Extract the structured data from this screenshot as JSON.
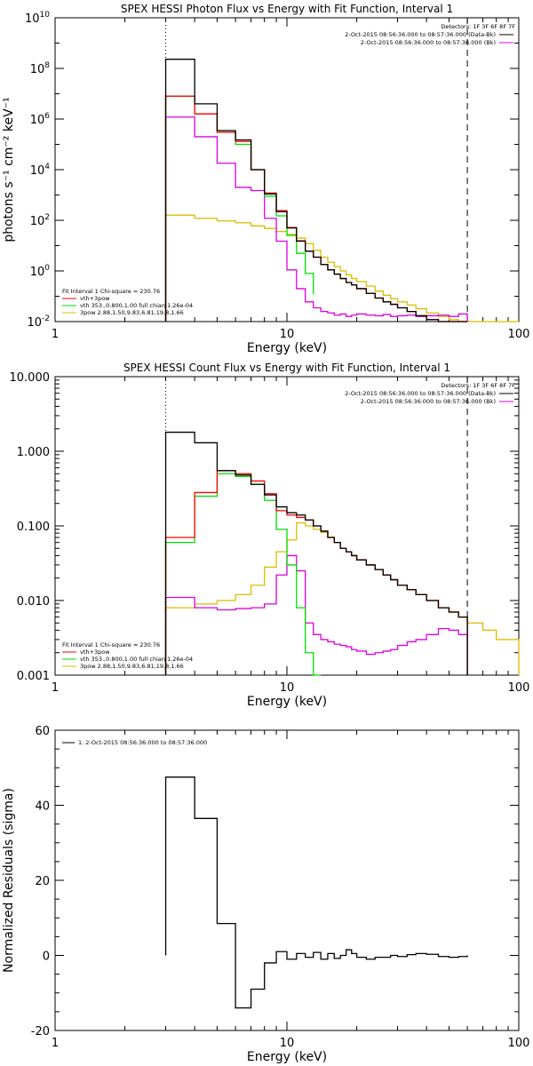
{
  "chart_data": [
    {
      "type": "line",
      "title": "SPEX HESSI Photon Flux vs Energy with Fit Function, Interval 1",
      "xlabel": "Energy (keV)",
      "ylabel": "photons s⁻¹ cm⁻² keV⁻¹",
      "xscale": "log",
      "yscale": "log",
      "xlim": [
        1,
        100
      ],
      "ylim": [
        0.01,
        10000000000.0
      ],
      "xticks": [
        {
          "v": 1,
          "label": "1"
        },
        {
          "v": 10,
          "label": "10"
        },
        {
          "v": 100,
          "label": "100"
        }
      ],
      "yticks": [
        {
          "v": 0.01,
          "base": "10",
          "exp": "-2"
        },
        {
          "v": 1,
          "base": "10",
          "exp": "0"
        },
        {
          "v": 100,
          "base": "10",
          "exp": "2"
        },
        {
          "v": 10000.0,
          "base": "10",
          "exp": "4"
        },
        {
          "v": 1000000.0,
          "base": "10",
          "exp": "6"
        },
        {
          "v": 100000000.0,
          "base": "10",
          "exp": "8"
        },
        {
          "v": 10000000000.0,
          "base": "10",
          "exp": "10"
        }
      ],
      "vlines": [
        {
          "x": 3,
          "style": "dotted"
        },
        {
          "x": 60,
          "style": "dashed"
        }
      ],
      "legend_top": [
        "Detectors: 1F 3F 6F 8F 7F",
        "2-Oct-2015 08:56:36.000 to 08:57:36.000 (Data-Bk)",
        "2-Oct-2015 08:56:36.000 to 08:57:36.000 (Bk)"
      ],
      "legend_bottom_header": "Fit Interval 1   Chi-square = 230.76",
      "legend_bottom": [
        "vth+3pow",
        "vth 353.,0.800,1.00  full chian 1.26e-04",
        "3pow 2.88,1.50,9.83,6.81,19.8,1.66"
      ],
      "series": [
        {
          "name": "data",
          "color": "#000000",
          "edges": [
            3,
            4,
            5,
            6,
            7,
            8,
            9,
            10,
            11,
            12,
            13,
            14,
            15,
            16,
            17,
            18,
            19,
            20,
            22,
            24,
            26,
            28,
            30,
            33,
            36,
            40,
            45,
            50,
            55,
            60
          ],
          "values": [
            230000000.0,
            4000000.0,
            350000.0,
            150000.0,
            10000.0,
            1100.0,
            220.0,
            50,
            15,
            6,
            3.5,
            1.8,
            1.1,
            0.75,
            0.5,
            0.35,
            0.28,
            0.2,
            0.13,
            0.085,
            0.06,
            0.048,
            0.035,
            0.025,
            0.017,
            0.012,
            0.009,
            0.007,
            0.005
          ]
        },
        {
          "name": "vth+3pow",
          "color": "#ff0000",
          "edges": [
            3,
            4,
            5,
            6,
            7,
            8,
            9,
            10,
            11,
            12,
            13,
            14,
            15,
            16,
            17,
            18,
            19,
            20,
            22,
            24,
            26,
            28,
            30,
            33,
            36,
            40,
            45,
            50,
            55,
            60
          ],
          "values": [
            8000000.0,
            1600000.0,
            300000.0,
            130000.0,
            10000.0,
            1200.0,
            240.0,
            52,
            15.5,
            6,
            3.5,
            1.8,
            1.1,
            0.75,
            0.5,
            0.35,
            0.28,
            0.2,
            0.13,
            0.085,
            0.06,
            0.048,
            0.035,
            0.025,
            0.017,
            0.012,
            0.009,
            0.007,
            0.005
          ]
        },
        {
          "name": "vth",
          "color": "#00dd00",
          "edges": [
            3,
            4,
            5,
            6,
            7,
            8,
            9,
            10,
            11,
            12,
            13
          ],
          "values": [
            8000000.0,
            1600000.0,
            300000.0,
            100000.0,
            10000.0,
            900.0,
            150.0,
            25,
            5,
            0.8,
            0.12
          ]
        },
        {
          "name": "3pow",
          "color": "#ddbb00",
          "edges": [
            3,
            4,
            5,
            6,
            7,
            8,
            9,
            10,
            11,
            12,
            13,
            14,
            15,
            16,
            17,
            18,
            19,
            20,
            22,
            24,
            26,
            28,
            30,
            33,
            36,
            40,
            45,
            50,
            55,
            60,
            70,
            80,
            100
          ],
          "values": [
            160,
            120,
            95,
            80,
            60,
            48,
            36,
            28,
            20,
            12,
            6.5,
            3.5,
            2.2,
            1.5,
            1.0,
            0.7,
            0.5,
            0.38,
            0.25,
            0.16,
            0.11,
            0.08,
            0.06,
            0.045,
            0.032,
            0.022,
            0.016,
            0.012,
            0.009,
            0.007,
            0.005,
            0.004
          ]
        },
        {
          "name": "background",
          "color": "#dd00dd",
          "edges": [
            3,
            4,
            5,
            6,
            7,
            8,
            9,
            10,
            11,
            12,
            13,
            14,
            15,
            16,
            17,
            18,
            19,
            20,
            22,
            24,
            26,
            28,
            30,
            33,
            36,
            40,
            45,
            50,
            55,
            60
          ],
          "values": [
            1200000.0,
            200000.0,
            18000.0,
            2000.0,
            1500.0,
            120.0,
            15,
            1.1,
            0.2,
            0.06,
            0.035,
            0.025,
            0.022,
            0.018,
            0.02,
            0.016,
            0.018,
            0.02,
            0.018,
            0.017,
            0.019,
            0.016,
            0.017,
            0.018,
            0.016,
            0.017,
            0.018,
            0.016,
            0.02
          ]
        }
      ]
    },
    {
      "type": "line",
      "title": "SPEX HESSI Count Flux vs Energy with Fit Function, Interval 1",
      "xlabel": "Energy (keV)",
      "ylabel": "",
      "xscale": "log",
      "yscale": "log",
      "xlim": [
        1,
        100
      ],
      "ylim": [
        0.001,
        10
      ],
      "xticks": [
        {
          "v": 1,
          "label": "1"
        },
        {
          "v": 10,
          "label": "10"
        },
        {
          "v": 100,
          "label": "100"
        }
      ],
      "yticks": [
        {
          "v": 0.001,
          "label": "0.001"
        },
        {
          "v": 0.01,
          "label": "0.010"
        },
        {
          "v": 0.1,
          "label": "0.100"
        },
        {
          "v": 1,
          "label": "1.000"
        },
        {
          "v": 10,
          "label": "10.000"
        }
      ],
      "vlines": [
        {
          "x": 3,
          "style": "dotted"
        },
        {
          "x": 60,
          "style": "dashed"
        }
      ],
      "legend_top": [
        "Detectors: 1F 3F 6F 8F 7F",
        "2-Oct-2015 08:56:36.000 to 08:57:36.000 (Data-Bk)",
        "2-Oct-2015 08:56:36.000 to 08:57:36.000 (Bk)"
      ],
      "legend_bottom_header": "Fit Interval 1   Chi-square = 230.76",
      "legend_bottom": [
        "vth+3pow",
        "vth 353.,0.800,1.00  full chian 1.26e-04",
        "3pow 2.88,1.50,9.83,6.81,19.8,1.66"
      ],
      "series": [
        {
          "name": "data",
          "color": "#000000",
          "edges": [
            3,
            4,
            5,
            6,
            7,
            8,
            9,
            10,
            11,
            12,
            13,
            14,
            15,
            16,
            17,
            18,
            19,
            20,
            22,
            24,
            26,
            28,
            30,
            33,
            36,
            40,
            45,
            50,
            55,
            60
          ],
          "values": [
            1.8,
            1.3,
            0.55,
            0.48,
            0.36,
            0.26,
            0.18,
            0.15,
            0.14,
            0.12,
            0.1,
            0.085,
            0.07,
            0.06,
            0.05,
            0.045,
            0.04,
            0.035,
            0.03,
            0.026,
            0.022,
            0.019,
            0.016,
            0.014,
            0.012,
            0.01,
            0.008,
            0.007,
            0.006
          ]
        },
        {
          "name": "vth+3pow",
          "color": "#ff0000",
          "edges": [
            3,
            4,
            5,
            6,
            7,
            8,
            9,
            10,
            11,
            12,
            13,
            14,
            15,
            16,
            17,
            18,
            19,
            20,
            22,
            24,
            26,
            28,
            30,
            33,
            36,
            40,
            45,
            50,
            55,
            60
          ],
          "values": [
            0.07,
            0.28,
            0.55,
            0.5,
            0.4,
            0.27,
            0.16,
            0.14,
            0.13,
            0.12,
            0.1,
            0.085,
            0.07,
            0.06,
            0.05,
            0.045,
            0.04,
            0.035,
            0.03,
            0.026,
            0.022,
            0.019,
            0.016,
            0.014,
            0.012,
            0.01,
            0.008,
            0.007,
            0.006
          ]
        },
        {
          "name": "vth",
          "color": "#00dd00",
          "edges": [
            3,
            4,
            5,
            6,
            7,
            8,
            9,
            10,
            11,
            12,
            13,
            14
          ],
          "values": [
            0.06,
            0.25,
            0.5,
            0.46,
            0.36,
            0.22,
            0.09,
            0.03,
            0.008,
            0.002,
            0.001
          ]
        },
        {
          "name": "3pow",
          "color": "#ddbb00",
          "edges": [
            3,
            4,
            5,
            6,
            7,
            8,
            9,
            10,
            11,
            12,
            13,
            14,
            15,
            16,
            17,
            18,
            19,
            20,
            22,
            24,
            26,
            28,
            30,
            33,
            36,
            40,
            45,
            50,
            55,
            60,
            70,
            80,
            100
          ],
          "values": [
            0.008,
            0.009,
            0.01,
            0.012,
            0.016,
            0.028,
            0.045,
            0.065,
            0.11,
            0.1,
            0.09,
            0.082,
            0.07,
            0.06,
            0.05,
            0.045,
            0.04,
            0.035,
            0.03,
            0.026,
            0.022,
            0.019,
            0.016,
            0.014,
            0.012,
            0.01,
            0.008,
            0.007,
            0.006,
            0.005,
            0.004,
            0.003
          ]
        },
        {
          "name": "background",
          "color": "#dd00dd",
          "edges": [
            3,
            4,
            5,
            6,
            7,
            8,
            9,
            10,
            11,
            12,
            13,
            14,
            15,
            16,
            17,
            18,
            19,
            20,
            22,
            24,
            26,
            28,
            30,
            33,
            36,
            40,
            45,
            50,
            55,
            60
          ],
          "values": [
            0.011,
            0.008,
            0.0075,
            0.0078,
            0.008,
            0.009,
            0.022,
            0.04,
            0.025,
            0.005,
            0.0035,
            0.003,
            0.0028,
            0.0026,
            0.0025,
            0.0024,
            0.0022,
            0.0021,
            0.0019,
            0.002,
            0.0021,
            0.0022,
            0.0025,
            0.0028,
            0.003,
            0.0035,
            0.0042,
            0.004,
            0.0035
          ]
        }
      ]
    },
    {
      "type": "line",
      "title": "",
      "xlabel": "Energy (keV)",
      "ylabel": "Normalized Residuals (sigma)",
      "xscale": "log",
      "yscale": "linear",
      "xlim": [
        1,
        100
      ],
      "ylim": [
        -20,
        60
      ],
      "xticks": [
        {
          "v": 1,
          "label": "1"
        },
        {
          "v": 10,
          "label": "10"
        },
        {
          "v": 100,
          "label": "100"
        }
      ],
      "yticks": [
        {
          "v": -20,
          "label": "-20"
        },
        {
          "v": 0,
          "label": "0"
        },
        {
          "v": 20,
          "label": "20"
        },
        {
          "v": 40,
          "label": "40"
        },
        {
          "v": 60,
          "label": "60"
        }
      ],
      "legend_top_left": "1. 2-Oct-2015 08:56:36.000 to 08:57:36.000",
      "series": [
        {
          "name": "residuals",
          "color": "#000000",
          "edges": [
            3,
            4,
            5,
            6,
            7,
            8,
            9,
            10,
            11,
            12,
            13,
            14,
            15,
            16,
            17,
            18,
            19,
            20,
            22,
            24,
            26,
            28,
            30,
            33,
            36,
            40,
            45,
            50,
            55,
            60
          ],
          "values": [
            47.5,
            36.5,
            8.5,
            -14,
            -9,
            -2,
            1,
            -1,
            0.5,
            -0.5,
            0.8,
            -1,
            0.5,
            -0.8,
            0,
            1.5,
            0.5,
            -0.5,
            -1,
            -0.5,
            -0.5,
            0,
            -0.3,
            0.2,
            0.5,
            0.3,
            -0.3,
            -0.5,
            -0.3
          ]
        }
      ]
    }
  ]
}
